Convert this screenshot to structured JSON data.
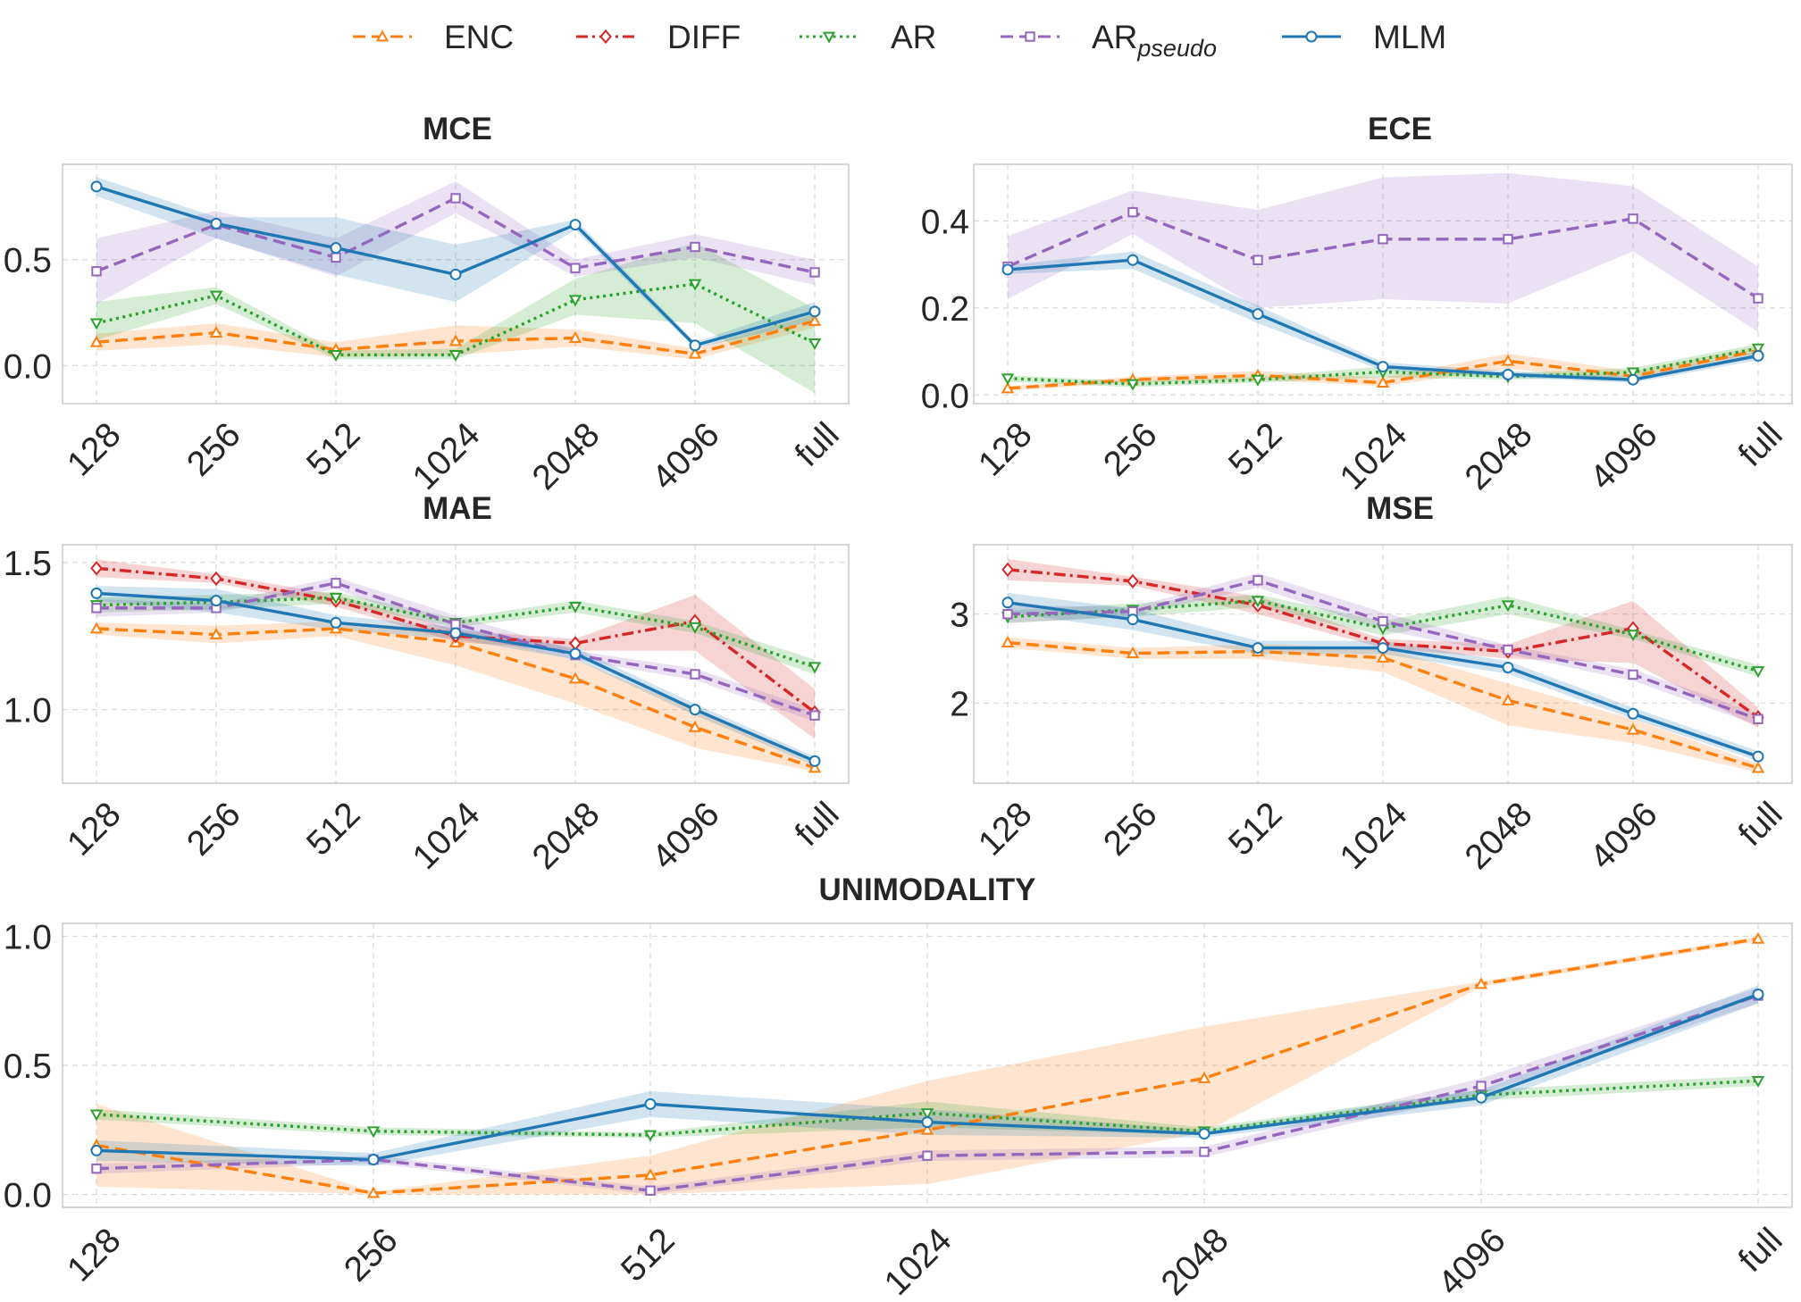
{
  "chart_data": {
    "type": "line",
    "categories": [
      "128",
      "256",
      "512",
      "1024",
      "2048",
      "4096",
      "full"
    ],
    "legend": [
      {
        "key": "ENC",
        "label": "ENC",
        "sub": "",
        "color": "#ff7f0e",
        "dash": "dashed",
        "marker": "triangle-up"
      },
      {
        "key": "DIFF",
        "label": "DIFF",
        "sub": "",
        "color": "#d62728",
        "dash": "dashdot",
        "marker": "diamond"
      },
      {
        "key": "AR",
        "label": "AR",
        "sub": "",
        "color": "#2ca02c",
        "dash": "dotted",
        "marker": "triangle-down"
      },
      {
        "key": "AR_pseudo",
        "label": "AR",
        "sub": "pseudo",
        "color": "#9467bd",
        "dash": "dashed",
        "marker": "square"
      },
      {
        "key": "MLM",
        "label": "MLM",
        "sub": "",
        "color": "#1f77b4",
        "dash": "solid",
        "marker": "circle"
      }
    ],
    "panels": [
      {
        "id": "mce",
        "title": "MCE",
        "ylim": [
          -0.18,
          0.95
        ],
        "yticks": [
          0.0,
          0.5
        ],
        "ytick_labels": [
          "0.0",
          "0.5"
        ],
        "series": [
          {
            "name": "ENC",
            "values": [
              0.11,
              0.155,
              0.075,
              0.115,
              0.13,
              0.055,
              0.21
            ],
            "lower": [
              0.07,
              0.1,
              0.04,
              0.05,
              0.09,
              0.03,
              0.18
            ],
            "upper": [
              0.15,
              0.2,
              0.11,
              0.19,
              0.17,
              0.08,
              0.24
            ]
          },
          {
            "name": "AR",
            "values": [
              0.2,
              0.33,
              0.05,
              0.05,
              0.31,
              0.385,
              0.105
            ],
            "lower": [
              0.12,
              0.29,
              0.03,
              0.03,
              0.24,
              0.2,
              -0.13
            ],
            "upper": [
              0.3,
              0.37,
              0.07,
              0.08,
              0.41,
              0.58,
              0.27
            ]
          },
          {
            "name": "AR_pseudo",
            "values": [
              0.445,
              0.665,
              0.51,
              0.79,
              0.46,
              0.56,
              0.44
            ],
            "lower": [
              0.29,
              0.6,
              0.42,
              0.72,
              0.42,
              0.51,
              0.38
            ],
            "upper": [
              0.6,
              0.73,
              0.6,
              0.87,
              0.5,
              0.62,
              0.5
            ]
          },
          {
            "name": "MLM",
            "values": [
              0.845,
              0.67,
              0.555,
              0.43,
              0.665,
              0.095,
              0.255
            ],
            "lower": [
              0.8,
              0.6,
              0.43,
              0.3,
              0.64,
              0.08,
              0.21
            ],
            "upper": [
              0.89,
              0.7,
              0.7,
              0.57,
              0.69,
              0.11,
              0.3
            ]
          }
        ]
      },
      {
        "id": "ece",
        "title": "ECE",
        "ylim": [
          -0.02,
          0.53
        ],
        "yticks": [
          0.0,
          0.2,
          0.4
        ],
        "ytick_labels": [
          "0.0",
          "0.2",
          "0.4"
        ],
        "series": [
          {
            "name": "ENC",
            "values": [
              0.015,
              0.035,
              0.045,
              0.028,
              0.078,
              0.043,
              0.102
            ],
            "lower": [
              0.01,
              0.028,
              0.035,
              0.02,
              0.06,
              0.032,
              0.092
            ],
            "upper": [
              0.02,
              0.042,
              0.055,
              0.04,
              0.095,
              0.055,
              0.112
            ]
          },
          {
            "name": "AR",
            "values": [
              0.038,
              0.025,
              0.035,
              0.053,
              0.042,
              0.052,
              0.107
            ],
            "lower": [
              0.03,
              0.018,
              0.028,
              0.04,
              0.035,
              0.042,
              0.097
            ],
            "upper": [
              0.045,
              0.032,
              0.042,
              0.065,
              0.05,
              0.062,
              0.117
            ]
          },
          {
            "name": "AR_pseudo",
            "values": [
              0.295,
              0.42,
              0.31,
              0.358,
              0.358,
              0.405,
              0.222
            ],
            "lower": [
              0.22,
              0.37,
              0.2,
              0.22,
              0.21,
              0.33,
              0.145
            ],
            "upper": [
              0.365,
              0.47,
              0.425,
              0.5,
              0.51,
              0.48,
              0.295
            ]
          },
          {
            "name": "MLM",
            "values": [
              0.288,
              0.31,
              0.186,
              0.065,
              0.047,
              0.035,
              0.09
            ],
            "lower": [
              0.278,
              0.29,
              0.165,
              0.055,
              0.04,
              0.028,
              0.08
            ],
            "upper": [
              0.298,
              0.33,
              0.205,
              0.075,
              0.055,
              0.042,
              0.1
            ]
          }
        ]
      },
      {
        "id": "mae",
        "title": "MAE",
        "ylim": [
          0.75,
          1.56
        ],
        "yticks": [
          1.0,
          1.5
        ],
        "ytick_labels": [
          "1.0",
          "1.5"
        ],
        "series": [
          {
            "name": "ENC",
            "values": [
              1.275,
              1.255,
              1.275,
              1.228,
              1.105,
              0.94,
              0.802
            ],
            "lower": [
              1.255,
              1.225,
              1.25,
              1.15,
              1.02,
              0.87,
              0.79
            ],
            "upper": [
              1.295,
              1.285,
              1.3,
              1.27,
              1.17,
              1.0,
              0.815
            ]
          },
          {
            "name": "DIFF",
            "values": [
              1.48,
              1.445,
              1.37,
              1.25,
              1.225,
              1.3,
              0.99
            ],
            "lower": [
              1.45,
              1.43,
              1.35,
              1.23,
              1.2,
              1.2,
              0.9
            ],
            "upper": [
              1.51,
              1.46,
              1.39,
              1.27,
              1.24,
              1.39,
              1.07
            ]
          },
          {
            "name": "AR",
            "values": [
              1.355,
              1.365,
              1.38,
              1.295,
              1.35,
              1.28,
              1.145
            ],
            "lower": [
              1.33,
              1.34,
              1.36,
              1.28,
              1.33,
              1.26,
              1.12
            ],
            "upper": [
              1.38,
              1.39,
              1.4,
              1.31,
              1.37,
              1.3,
              1.17
            ]
          },
          {
            "name": "AR_pseudo",
            "values": [
              1.345,
              1.345,
              1.43,
              1.29,
              1.185,
              1.12,
              0.98
            ],
            "lower": [
              1.315,
              1.33,
              1.41,
              1.26,
              1.17,
              1.1,
              0.96
            ],
            "upper": [
              1.375,
              1.36,
              1.45,
              1.32,
              1.2,
              1.14,
              1.0
            ]
          },
          {
            "name": "MLM",
            "values": [
              1.395,
              1.37,
              1.295,
              1.26,
              1.19,
              1.0,
              0.825
            ],
            "lower": [
              1.37,
              1.33,
              1.27,
              1.24,
              1.17,
              0.98,
              0.81
            ],
            "upper": [
              1.42,
              1.41,
              1.32,
              1.28,
              1.21,
              1.02,
              0.84
            ]
          }
        ]
      },
      {
        "id": "mse",
        "title": "MSE",
        "ylim": [
          1.1,
          3.78
        ],
        "yticks": [
          2,
          3
        ],
        "ytick_labels": [
          "2",
          "3"
        ],
        "series": [
          {
            "name": "ENC",
            "values": [
              2.68,
              2.56,
              2.58,
              2.51,
              2.03,
              1.7,
              1.27
            ],
            "lower": [
              2.62,
              2.5,
              2.5,
              2.35,
              1.75,
              1.55,
              1.22
            ],
            "upper": [
              2.74,
              2.62,
              2.66,
              2.62,
              2.22,
              1.82,
              1.32
            ]
          },
          {
            "name": "DIFF",
            "values": [
              3.5,
              3.37,
              3.1,
              2.67,
              2.58,
              2.84,
              1.84
            ],
            "lower": [
              3.38,
              3.32,
              3.0,
              2.62,
              2.5,
              2.45,
              1.72
            ],
            "upper": [
              3.62,
              3.42,
              3.2,
              2.72,
              2.66,
              3.15,
              1.95
            ]
          },
          {
            "name": "AR",
            "values": [
              2.97,
              3.05,
              3.15,
              2.84,
              3.1,
              2.77,
              2.36
            ],
            "lower": [
              2.9,
              2.97,
              3.08,
              2.76,
              3.0,
              2.72,
              2.3
            ],
            "upper": [
              3.04,
              3.12,
              3.22,
              2.92,
              3.2,
              2.82,
              2.43
            ]
          },
          {
            "name": "AR_pseudo",
            "values": [
              3.0,
              3.03,
              3.38,
              2.92,
              2.6,
              2.32,
              1.82
            ],
            "lower": [
              2.9,
              2.98,
              3.3,
              2.82,
              2.55,
              2.25,
              1.75
            ],
            "upper": [
              3.1,
              3.08,
              3.46,
              3.02,
              2.65,
              2.38,
              1.88
            ]
          },
          {
            "name": "MLM",
            "values": [
              3.13,
              2.94,
              2.62,
              2.62,
              2.4,
              1.88,
              1.4
            ],
            "lower": [
              3.02,
              2.82,
              2.55,
              2.55,
              2.33,
              1.82,
              1.35
            ],
            "upper": [
              3.24,
              3.06,
              2.7,
              2.7,
              2.47,
              1.95,
              1.46
            ]
          }
        ]
      },
      {
        "id": "unimodality",
        "title": "UNIMODALITY",
        "ylim": [
          -0.05,
          1.05
        ],
        "yticks": [
          0.0,
          0.5,
          1.0
        ],
        "ytick_labels": [
          "0.0",
          "0.5",
          "1.0"
        ],
        "series": [
          {
            "name": "ENC",
            "values": [
              0.19,
              0.005,
              0.075,
              0.25,
              0.45,
              0.815,
              0.99
            ],
            "lower": [
              0.03,
              0.0,
              0.0,
              0.04,
              0.24,
              0.805,
              0.98
            ],
            "upper": [
              0.35,
              0.01,
              0.15,
              0.44,
              0.65,
              0.825,
              1.0
            ]
          },
          {
            "name": "AR",
            "values": [
              0.31,
              0.245,
              0.23,
              0.315,
              0.245,
              0.385,
              0.44
            ],
            "lower": [
              0.29,
              0.23,
              0.22,
              0.26,
              0.23,
              0.365,
              0.42
            ],
            "upper": [
              0.33,
              0.26,
              0.24,
              0.36,
              0.26,
              0.405,
              0.46
            ]
          },
          {
            "name": "AR_pseudo",
            "values": [
              0.1,
              0.135,
              0.015,
              0.15,
              0.165,
              0.42,
              0.77
            ],
            "lower": [
              0.08,
              0.12,
              0.0,
              0.13,
              0.145,
              0.39,
              0.74
            ],
            "upper": [
              0.12,
              0.15,
              0.03,
              0.17,
              0.185,
              0.45,
              0.8
            ]
          },
          {
            "name": "MLM",
            "values": [
              0.17,
              0.135,
              0.35,
              0.28,
              0.235,
              0.375,
              0.775
            ],
            "lower": [
              0.13,
              0.11,
              0.3,
              0.23,
              0.22,
              0.345,
              0.74
            ],
            "upper": [
              0.21,
              0.16,
              0.4,
              0.33,
              0.25,
              0.405,
              0.81
            ]
          }
        ]
      }
    ]
  }
}
